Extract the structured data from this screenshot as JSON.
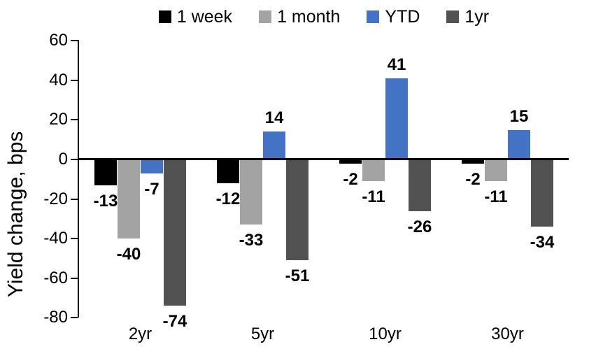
{
  "chart_data": {
    "type": "bar",
    "title": "",
    "ylabel": "Yield change, bps",
    "xlabel": "",
    "categories": [
      "2yr",
      "5yr",
      "10yr",
      "30yr"
    ],
    "series": [
      {
        "name": "1 week",
        "color": "#000000",
        "values": [
          -13,
          -12,
          -2,
          -2
        ]
      },
      {
        "name": "1 month",
        "color": "#A3A3A3",
        "values": [
          -40,
          -33,
          -11,
          -11
        ]
      },
      {
        "name": "YTD",
        "color": "#4472C4",
        "values": [
          -7,
          14,
          41,
          15
        ]
      },
      {
        "name": "1yr",
        "color": "#525252",
        "values": [
          -74,
          -51,
          -26,
          -34
        ]
      }
    ],
    "yticks": [
      60,
      40,
      20,
      0,
      -20,
      -40,
      -60,
      -80
    ],
    "ylim": [
      -80,
      60
    ],
    "legend_position": "top",
    "grid": false,
    "axis_color": "#000000",
    "data_labels": true
  }
}
